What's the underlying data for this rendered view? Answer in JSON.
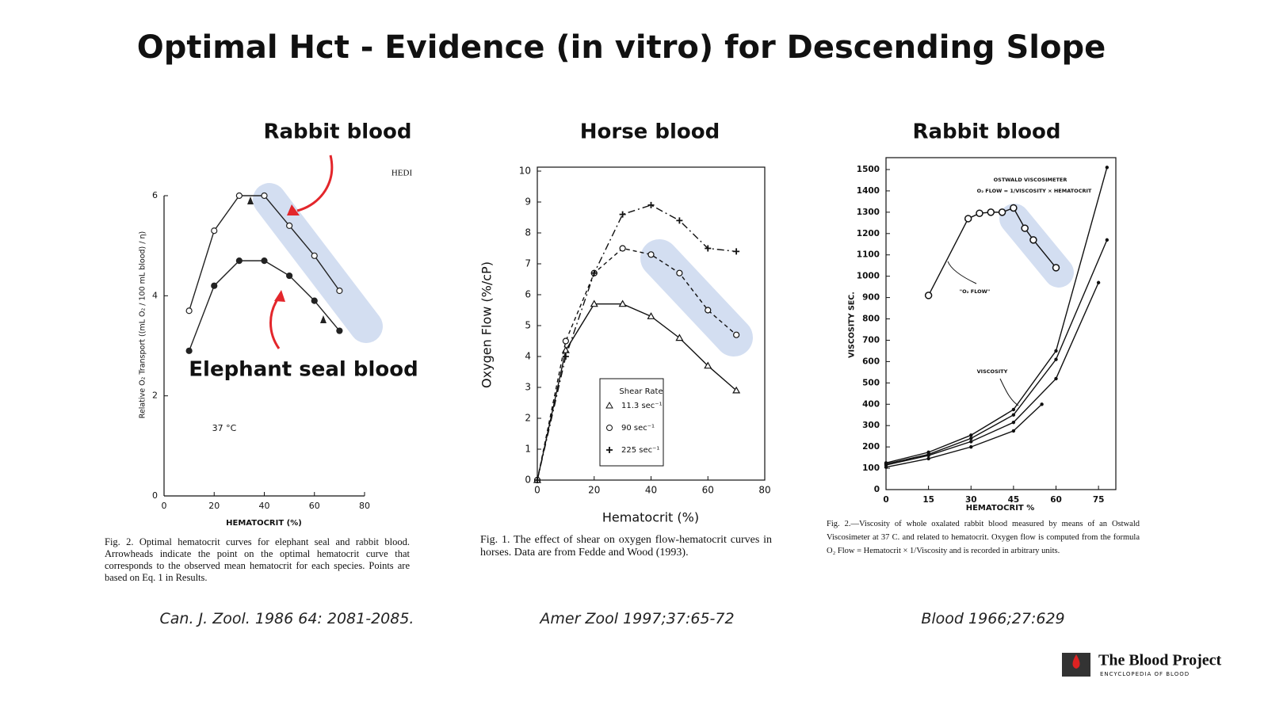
{
  "slide": {
    "title": "Optimal Hct - Evidence (in vitro) for Descending Slope",
    "callout": "Elephant seal blood",
    "logo": {
      "name": "The Blood Project",
      "tagline": "ENCYCLOPEDIA OF BLOOD"
    }
  },
  "chart_data": [
    {
      "type": "line",
      "title": "Rabbit blood",
      "source": "Can. J. Zool. 1986 64: 2081-2085.",
      "caption": "Fig. 2. Optimal hematocrit curves for elephant seal and rabbit blood. Arrowheads indicate the point on the optimal hematocrit curve that corresponds to the observed mean hematocrit for each species. Points are based on Eq. 1 in Results.",
      "x_label": "HEMATOCRIT (%)",
      "y_label": "Relative O₂ Transport ((mL O₂ / 100 mL blood) / η)",
      "xlim": [
        0,
        80
      ],
      "xticks": [
        0,
        20,
        40,
        60,
        80
      ],
      "ylim": [
        0,
        6
      ],
      "yticks": [
        0,
        2,
        4,
        6
      ],
      "frame": "axes",
      "annotations": [
        "37 °C",
        "HEDI"
      ],
      "series": [
        {
          "marker": "open-circle",
          "color": "#222222",
          "x": [
            10,
            20,
            30,
            40,
            50,
            60,
            70
          ],
          "values": [
            3.7,
            5.3,
            6.0,
            6.0,
            5.4,
            4.8,
            4.1
          ]
        },
        {
          "marker": "filled-circle",
          "color": "#222222",
          "x": [
            10,
            20,
            30,
            40,
            50,
            60,
            70
          ],
          "values": [
            2.9,
            4.2,
            4.7,
            4.7,
            4.4,
            3.9,
            3.3
          ]
        }
      ]
    },
    {
      "type": "line",
      "title": "Horse blood",
      "source": "Amer Zool 1997;37:65-72",
      "caption": "Fig. 1. The effect of shear on oxygen flow-hematocrit curves in horses. Data are from Fedde and Wood (1993).",
      "x_label": "Hematocrit (%)",
      "y_label": "Oxygen Flow (%/cP)",
      "xlim": [
        0,
        80
      ],
      "xticks": [
        0,
        20,
        40,
        60,
        80
      ],
      "ylim": [
        0,
        10
      ],
      "yticks": [
        0,
        1,
        2,
        3,
        4,
        5,
        6,
        7,
        8,
        9,
        10
      ],
      "frame": "box",
      "legend_title": "Shear Rate",
      "annotations": [],
      "series": [
        {
          "name": "11.3 sec⁻¹",
          "marker": "triangle",
          "dash": "solid",
          "color": "#111111",
          "x": [
            0,
            10,
            20,
            30,
            40,
            50,
            60,
            70
          ],
          "values": [
            0,
            4.2,
            5.7,
            5.7,
            5.3,
            4.6,
            3.7,
            2.9
          ]
        },
        {
          "name": "90 sec⁻¹",
          "marker": "open-circle",
          "dash": "dashed",
          "color": "#111111",
          "x": [
            0,
            10,
            20,
            30,
            40,
            50,
            60,
            70
          ],
          "values": [
            0,
            4.5,
            6.7,
            7.5,
            7.3,
            6.7,
            5.5,
            4.7
          ]
        },
        {
          "name": "225 sec⁻¹",
          "marker": "plus",
          "dash": "dashdot",
          "color": "#111111",
          "x": [
            0,
            10,
            20,
            30,
            40,
            50,
            60,
            70
          ],
          "values": [
            0,
            4.0,
            6.7,
            8.6,
            8.9,
            8.4,
            7.5,
            7.4
          ]
        }
      ]
    },
    {
      "type": "line",
      "title": "Rabbit blood",
      "source": "Blood 1966;27:629",
      "caption": "Fig. 2.—Viscosity of whole oxalated rabbit blood measured by means of an Ostwald Viscosimeter at 37 C. and related to hematocrit. Oxygen flow is computed from the formula O₂ Flow = Hematocrit × 1/Viscosity and is recorded in arbitrary units.",
      "x_label": "HEMATOCRIT %",
      "y_label": "VISCOSITY SEC.",
      "xlim": [
        0,
        80
      ],
      "xticks": [
        0,
        15,
        30,
        45,
        60,
        75
      ],
      "ylim": [
        0,
        1500
      ],
      "yticks": [
        0,
        100,
        200,
        300,
        400,
        500,
        600,
        700,
        800,
        900,
        1000,
        1100,
        1200,
        1300,
        1400,
        1500
      ],
      "frame": "box",
      "annotations": [
        "OSTWALD VISCOSIMETER",
        "O₂ FLOW = 1/VISCOSITY × HEMATOCRIT",
        "\"O₂ FLOW\"",
        "VISCOSITY"
      ],
      "series": [
        {
          "marker": "ring-dot",
          "dash": "solid",
          "color": "#111111",
          "x": [
            15,
            29,
            33,
            37,
            41,
            45,
            49,
            52,
            60
          ],
          "values": [
            910,
            1270,
            1295,
            1300,
            1300,
            1320,
            1225,
            1170,
            1040
          ]
        },
        {
          "marker": "dot",
          "dash": "solid",
          "color": "#111111",
          "x": [
            0,
            15,
            30,
            45,
            60,
            78
          ],
          "values": [
            125,
            175,
            255,
            375,
            650,
            1510
          ]
        },
        {
          "marker": "dot",
          "dash": "solid",
          "color": "#111111",
          "x": [
            0,
            15,
            30,
            45,
            60,
            78
          ],
          "values": [
            120,
            165,
            240,
            350,
            610,
            1170
          ]
        },
        {
          "marker": "dot",
          "dash": "solid",
          "color": "#111111",
          "x": [
            0,
            15,
            30,
            45,
            60,
            75
          ],
          "values": [
            115,
            160,
            225,
            315,
            520,
            970
          ]
        },
        {
          "marker": "dot",
          "dash": "solid",
          "color": "#111111",
          "x": [
            0,
            15,
            30,
            45,
            55
          ],
          "values": [
            105,
            145,
            200,
            275,
            400
          ]
        }
      ]
    }
  ]
}
